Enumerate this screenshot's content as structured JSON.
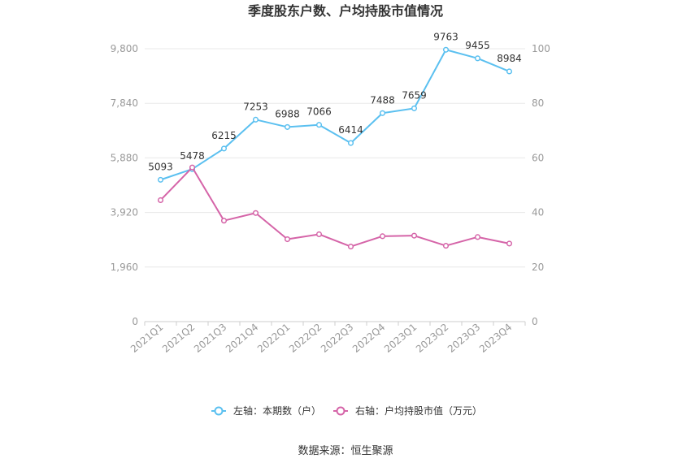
{
  "chart_data": {
    "type": "line",
    "title": "季度股东户数、户均持股市值情况",
    "categories": [
      "2021Q1",
      "2021Q2",
      "2021Q3",
      "2021Q4",
      "2022Q1",
      "2022Q2",
      "2022Q3",
      "2022Q4",
      "2023Q1",
      "2023Q2",
      "2023Q3",
      "2023Q4"
    ],
    "left_axis": {
      "ticks": [
        "0",
        "1,960",
        "3,920",
        "5,880",
        "7,840",
        "9,800"
      ],
      "ylim": [
        0,
        9800
      ]
    },
    "right_axis": {
      "ticks": [
        "0",
        "20",
        "40",
        "60",
        "80",
        "100"
      ],
      "ylim": [
        0,
        100
      ]
    },
    "series": [
      {
        "name": "左轴：本期数（户）",
        "axis": "left",
        "color": "#5bc0f0",
        "values": [
          5093,
          5478,
          6215,
          7253,
          6988,
          7066,
          6414,
          7488,
          7659,
          9763,
          9455,
          8984
        ],
        "labels": [
          "5093",
          "5478",
          "6215",
          "7253",
          "6988",
          "7066",
          "6414",
          "7488",
          "7659",
          "9763",
          "9455",
          "8984"
        ]
      },
      {
        "name": "右轴：户均持股市值（万元）",
        "axis": "right",
        "color": "#d564a8",
        "values": [
          44.5,
          56.5,
          37.0,
          39.8,
          30.2,
          32.0,
          27.5,
          31.3,
          31.5,
          27.8,
          31.0,
          28.6
        ]
      }
    ],
    "grid": true,
    "legend_position": "bottom"
  },
  "source": "数据来源：恒生聚源"
}
